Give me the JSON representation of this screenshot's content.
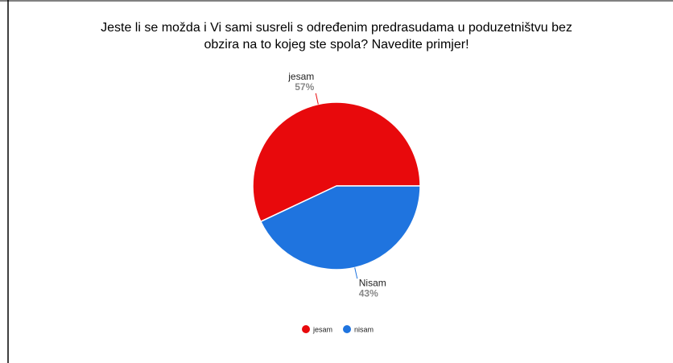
{
  "chart_data": {
    "type": "pie",
    "title": [
      "Jeste li se možda i Vi sami susreli s određenim predrasudama u poduzetništvu bez",
      "obzira na to kojeg ste spola? Navedite primjer!"
    ],
    "categories": [
      "jesam",
      "Nisam"
    ],
    "values": [
      57,
      43
    ],
    "value_labels": [
      "57%",
      "43%"
    ],
    "colors": [
      "#e8090c",
      "#1f74df"
    ],
    "legend_labels": [
      "jesam",
      "nisam"
    ],
    "legend": "bottom"
  }
}
